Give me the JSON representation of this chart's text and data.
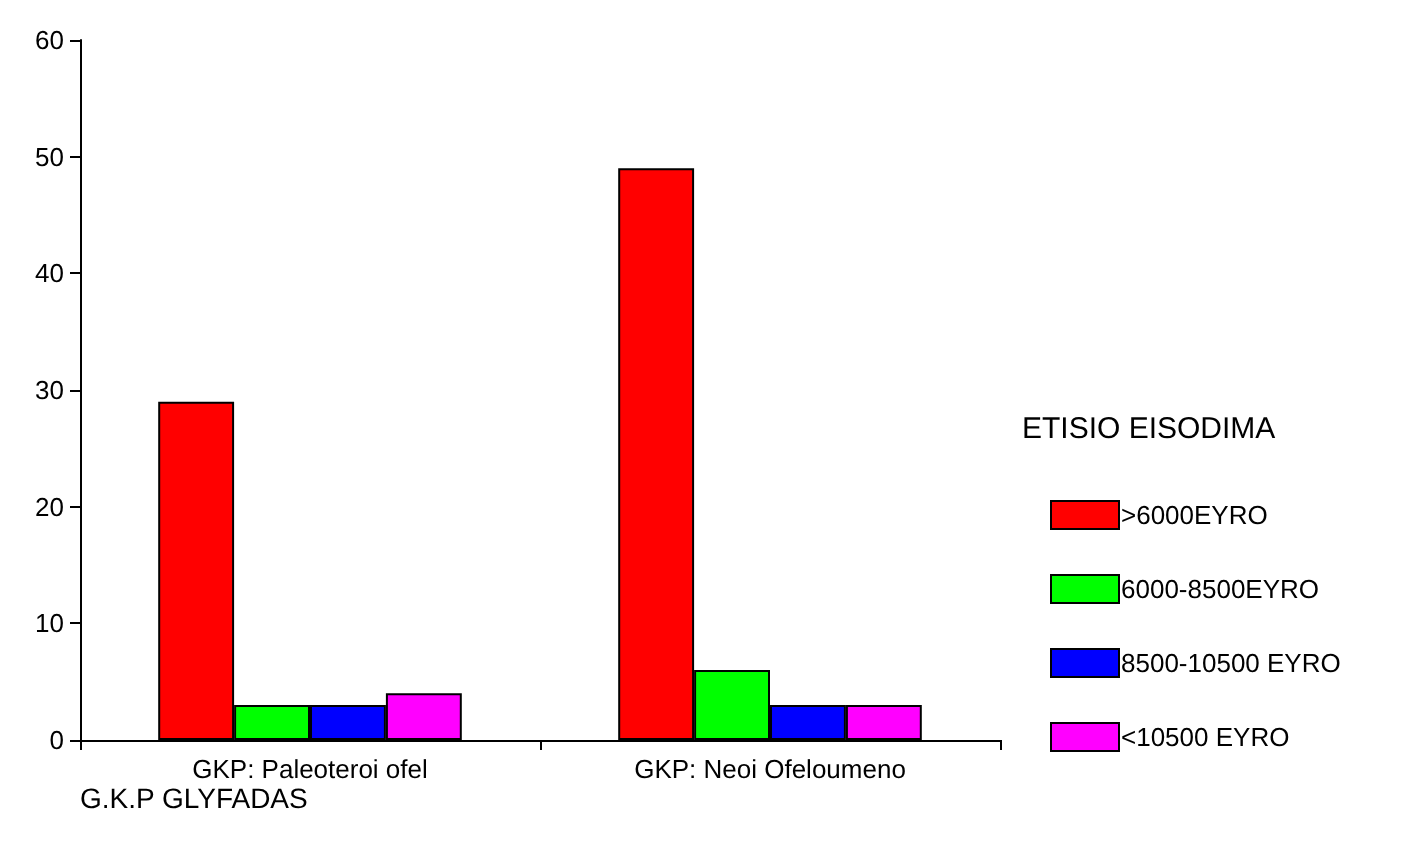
{
  "chart_data": {
    "type": "bar",
    "xlabel": "G.K.P GLYFADAS",
    "legend_title": "ETISIO EISODIMA",
    "categories": [
      "GKP: Paleoteroi ofel",
      "GKP: Neoi Ofeloumeno"
    ],
    "series": [
      {
        "name": ">6000EYRO",
        "color": "#ff0000",
        "values": [
          29,
          49
        ]
      },
      {
        "name": "6000-8500EYRO",
        "color": "#00ff00",
        "values": [
          3,
          6
        ]
      },
      {
        "name": "8500-10500 EYRO",
        "color": "#0000ff",
        "values": [
          3,
          3
        ]
      },
      {
        "name": "<10500 EYRO",
        "color": "#ff00ff",
        "values": [
          4,
          3
        ]
      }
    ],
    "ylim": [
      0,
      60
    ],
    "yticks": [
      0,
      10,
      20,
      30,
      40,
      50,
      60
    ],
    "grid": false,
    "legend": "right"
  }
}
